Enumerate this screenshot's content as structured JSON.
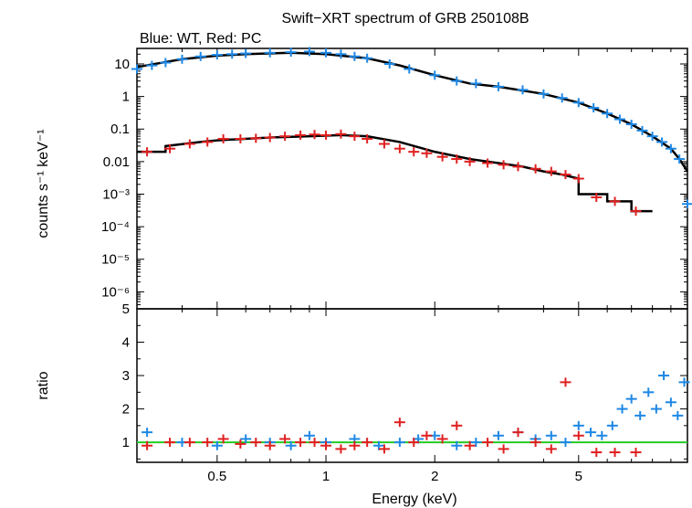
{
  "chart_data": [
    {
      "type": "scatter",
      "title": "Swift−XRT spectrum of GRB 250108B",
      "subtitle": "Blue: WT, Red: PC",
      "xlabel": "",
      "ylabel": "counts s⁻¹ keV⁻¹",
      "xscale": "log",
      "yscale": "log",
      "xlim": [
        0.3,
        10
      ],
      "ylim": [
        3e-07,
        30
      ],
      "xticks": [
        {
          "value": 0.5,
          "label": "0.5"
        },
        {
          "value": 1,
          "label": "1"
        },
        {
          "value": 2,
          "label": "2"
        },
        {
          "value": 5,
          "label": "5"
        }
      ],
      "yticks": [
        {
          "value": 10,
          "label": "10"
        },
        {
          "value": 1,
          "label": "1"
        },
        {
          "value": 0.1,
          "label": "0.1"
        },
        {
          "value": 0.01,
          "label": "0.01"
        },
        {
          "value": 0.001,
          "label": "10⁻³"
        },
        {
          "value": 0.0001,
          "label": "10⁻⁴"
        },
        {
          "value": 1e-05,
          "label": "10⁻⁵"
        },
        {
          "value": 1e-06,
          "label": "10⁻⁶"
        }
      ],
      "series": [
        {
          "color": "#1e88e5",
          "x": [
            0.3,
            0.33,
            0.36,
            0.4,
            0.45,
            0.5,
            0.55,
            0.6,
            0.7,
            0.8,
            0.9,
            1.0,
            1.1,
            1.2,
            1.3,
            1.5,
            1.7,
            2.0,
            2.3,
            2.6,
            3.0,
            3.5,
            4.0,
            4.5,
            5.0,
            5.5,
            6.0,
            6.5,
            7.0,
            7.5,
            8.0,
            8.5,
            9.0,
            9.5,
            10.0
          ],
          "y": [
            7,
            9,
            11,
            14,
            17,
            19,
            20,
            21,
            22,
            23,
            24,
            22,
            20,
            17,
            15,
            10,
            7,
            4.5,
            3,
            2.5,
            2,
            1.6,
            1.2,
            0.9,
            0.65,
            0.45,
            0.3,
            0.2,
            0.14,
            0.09,
            0.06,
            0.04,
            0.025,
            0.012,
            0.0005
          ]
        },
        {
          "color": "#e02020",
          "x": [
            0.32,
            0.37,
            0.42,
            0.47,
            0.52,
            0.58,
            0.64,
            0.7,
            0.77,
            0.85,
            0.93,
            1.0,
            1.1,
            1.2,
            1.3,
            1.45,
            1.6,
            1.75,
            1.9,
            2.1,
            2.3,
            2.5,
            2.8,
            3.1,
            3.4,
            3.8,
            4.2,
            4.6,
            5.0,
            5.6,
            6.3,
            7.2
          ],
          "y": [
            0.02,
            0.025,
            0.035,
            0.04,
            0.05,
            0.05,
            0.052,
            0.055,
            0.06,
            0.065,
            0.068,
            0.065,
            0.07,
            0.06,
            0.05,
            0.035,
            0.025,
            0.02,
            0.018,
            0.014,
            0.012,
            0.01,
            0.009,
            0.008,
            0.007,
            0.006,
            0.005,
            0.004,
            0.003,
            0.0008,
            0.0006,
            0.0003
          ]
        }
      ],
      "model": {
        "color": "#000000",
        "wt": {
          "x": [
            0.3,
            0.4,
            0.5,
            0.6,
            0.8,
            1.0,
            1.3,
            1.6,
            2.0,
            2.5,
            3.0,
            4.0,
            5.0,
            6.0,
            7.0,
            8.0,
            9.0,
            9.5,
            10.0
          ],
          "y": [
            8,
            14,
            18,
            20,
            22,
            20,
            15,
            9,
            4.5,
            2.5,
            2,
            1.2,
            0.65,
            0.3,
            0.14,
            0.06,
            0.025,
            0.012,
            0.005
          ]
        },
        "pc": {
          "x": [
            0.3,
            0.36,
            0.36,
            0.45,
            0.5,
            0.7,
            0.9,
            1.1,
            1.3,
            1.6,
            2.0,
            2.5,
            3.0,
            3.5,
            4.0,
            4.5,
            5.0,
            5.0,
            6.0,
            6.0,
            7.0,
            7.0,
            8.0
          ],
          "y": [
            0.02,
            0.02,
            0.03,
            0.04,
            0.045,
            0.055,
            0.06,
            0.065,
            0.06,
            0.04,
            0.02,
            0.012,
            0.009,
            0.007,
            0.005,
            0.004,
            0.003,
            0.001,
            0.001,
            0.0006,
            0.0006,
            0.0003,
            0.0003
          ]
        }
      }
    },
    {
      "type": "scatter",
      "title": "",
      "xlabel": "Energy (keV)",
      "ylabel": "ratio",
      "xscale": "log",
      "yscale": "linear",
      "xlim": [
        0.3,
        10
      ],
      "ylim": [
        0.4,
        5
      ],
      "xticks": [
        {
          "value": 0.5,
          "label": "0.5"
        },
        {
          "value": 1,
          "label": "1"
        },
        {
          "value": 2,
          "label": "2"
        },
        {
          "value": 5,
          "label": "5"
        }
      ],
      "yticks": [
        {
          "value": 1,
          "label": "1"
        },
        {
          "value": 2,
          "label": "2"
        },
        {
          "value": 3,
          "label": "3"
        },
        {
          "value": 4,
          "label": "4"
        },
        {
          "value": 5,
          "label": "5"
        }
      ],
      "reference_line": {
        "y": 1,
        "color": "#22cc22"
      },
      "series": [
        {
          "color": "#1e88e5",
          "x": [
            0.32,
            0.4,
            0.5,
            0.6,
            0.7,
            0.8,
            0.9,
            1.0,
            1.2,
            1.4,
            1.6,
            1.8,
            2.0,
            2.3,
            2.6,
            3.0,
            3.4,
            3.8,
            4.2,
            4.6,
            5.0,
            5.4,
            5.8,
            6.2,
            6.6,
            7.0,
            7.4,
            7.8,
            8.2,
            8.6,
            9.0,
            9.4,
            9.8
          ],
          "y": [
            1.3,
            1.0,
            0.9,
            1.1,
            1.0,
            0.9,
            1.2,
            1.0,
            1.1,
            0.9,
            1.0,
            1.1,
            1.2,
            0.9,
            1.0,
            1.2,
            1.3,
            1.1,
            1.2,
            1.0,
            1.5,
            1.3,
            1.2,
            1.5,
            2.0,
            2.3,
            1.8,
            2.5,
            2.0,
            3.0,
            2.2,
            1.8,
            2.8
          ]
        },
        {
          "color": "#e02020",
          "x": [
            0.32,
            0.37,
            0.42,
            0.47,
            0.52,
            0.58,
            0.64,
            0.7,
            0.77,
            0.85,
            0.93,
            1.0,
            1.1,
            1.2,
            1.3,
            1.45,
            1.6,
            1.75,
            1.9,
            2.1,
            2.3,
            2.5,
            2.8,
            3.1,
            3.4,
            3.8,
            4.2,
            4.6,
            5.0,
            5.6,
            6.3,
            7.2
          ],
          "y": [
            0.9,
            1.0,
            1.0,
            1.0,
            1.1,
            0.95,
            1.0,
            0.9,
            1.1,
            1.0,
            1.0,
            0.9,
            0.8,
            0.9,
            1.0,
            0.8,
            1.6,
            1.0,
            1.2,
            1.1,
            1.5,
            0.9,
            1.0,
            0.8,
            1.3,
            1.0,
            0.8,
            2.8,
            1.2,
            0.7,
            0.7,
            0.7
          ]
        }
      ]
    }
  ]
}
